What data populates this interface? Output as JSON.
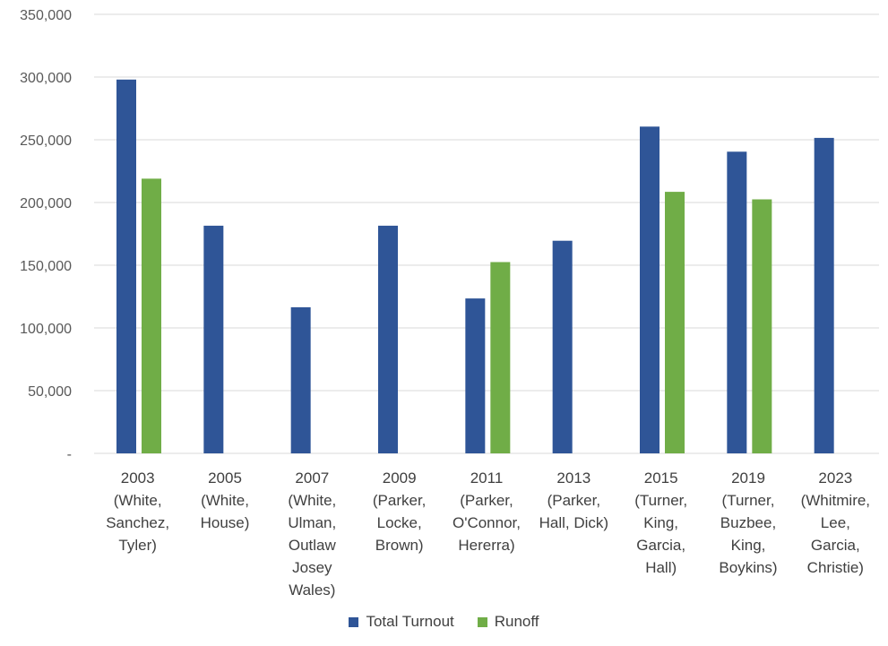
{
  "chart_data": {
    "type": "bar",
    "categories": [
      [
        "2003",
        "(White,",
        "Sanchez,",
        "Tyler)"
      ],
      [
        "2005",
        "(White,",
        "House)"
      ],
      [
        "2007",
        "(White,",
        "Ulman,",
        "Outlaw",
        "Josey",
        "Wales)"
      ],
      [
        "2009",
        "(Parker,",
        "Locke,",
        "Brown)"
      ],
      [
        "2011",
        "(Parker,",
        "O'Connor,",
        "Hererra)"
      ],
      [
        "2013",
        "(Parker,",
        "Hall, Dick)"
      ],
      [
        "2015",
        "(Turner,",
        "King,",
        "Garcia,",
        "Hall)"
      ],
      [
        "2019",
        "(Turner,",
        "Buzbee,",
        "King,",
        "Boykins)"
      ],
      [
        "2023",
        "(Whitmire,",
        "Lee,",
        "Garcia,",
        "Christie)"
      ]
    ],
    "series": [
      {
        "name": "Total Turnout",
        "color": "#2f5597",
        "values": [
          298000,
          181500,
          116500,
          181500,
          123500,
          169500,
          260500,
          240500,
          251500
        ]
      },
      {
        "name": "Runoff",
        "color": "#70ad47",
        "values": [
          219000,
          null,
          null,
          null,
          152500,
          null,
          208500,
          202500,
          null
        ]
      }
    ],
    "ylim": [
      0,
      350000
    ],
    "yticks": [
      0,
      50000,
      100000,
      150000,
      200000,
      250000,
      300000,
      350000
    ],
    "ytick_labels": [
      "-",
      "50,000",
      "100,000",
      "150,000",
      "200,000",
      "250,000",
      "300,000",
      "350,000"
    ],
    "grid": true,
    "legend_position": "bottom"
  }
}
